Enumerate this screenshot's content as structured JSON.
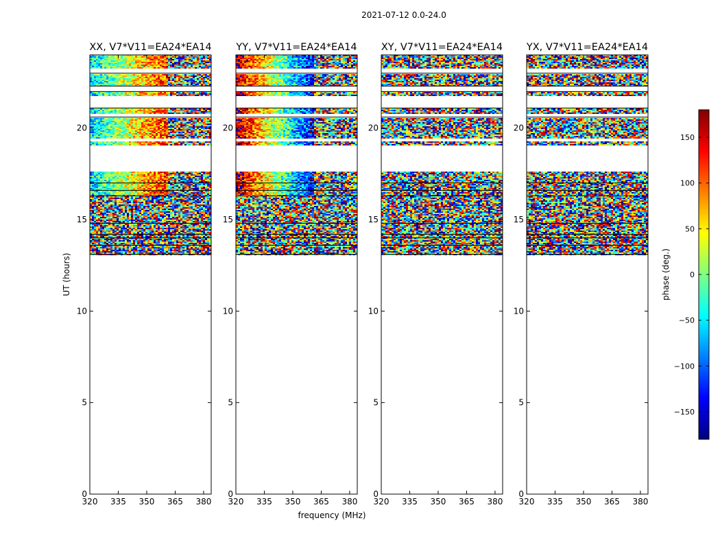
{
  "figure": {
    "suptitle": "2021-07-12 0.0-24.0"
  },
  "chart_data": {
    "type": "heatmap",
    "xlabel": "frequency (MHz)",
    "ylabel": "UT (hours)",
    "xlim": [
      320,
      384
    ],
    "ylim": [
      0,
      24
    ],
    "x_ticks": [
      320,
      335,
      350,
      365,
      380
    ],
    "y_ticks": [
      0,
      5,
      10,
      15,
      20
    ],
    "panels": [
      {
        "title": "XX, V7*V11=EA24*EA14",
        "pattern": "smooth"
      },
      {
        "title": "YY, V7*V11=EA24*EA14",
        "pattern": "smooth-shifted"
      },
      {
        "title": "XY, V7*V11=EA24*EA14",
        "pattern": "noise"
      },
      {
        "title": "YX, V7*V11=EA24*EA14",
        "pattern": "noise"
      }
    ],
    "data_ut_range": [
      13.1,
      24.0
    ],
    "gap_bands_ut": [
      [
        17.7,
        19.1
      ],
      [
        19.3,
        19.5
      ],
      [
        20.6,
        20.8
      ],
      [
        21.1,
        21.8
      ],
      [
        22.0,
        22.3
      ],
      [
        23.0,
        23.3
      ]
    ],
    "colorbar": {
      "label": "phase (deg.)",
      "colormap": "jet",
      "range": [
        -180,
        180
      ],
      "ticks": [
        -150,
        -100,
        -50,
        0,
        50,
        100,
        150
      ],
      "tick_labels": [
        "−150",
        "−100",
        "−50",
        "0",
        "50",
        "100",
        "150"
      ]
    }
  }
}
